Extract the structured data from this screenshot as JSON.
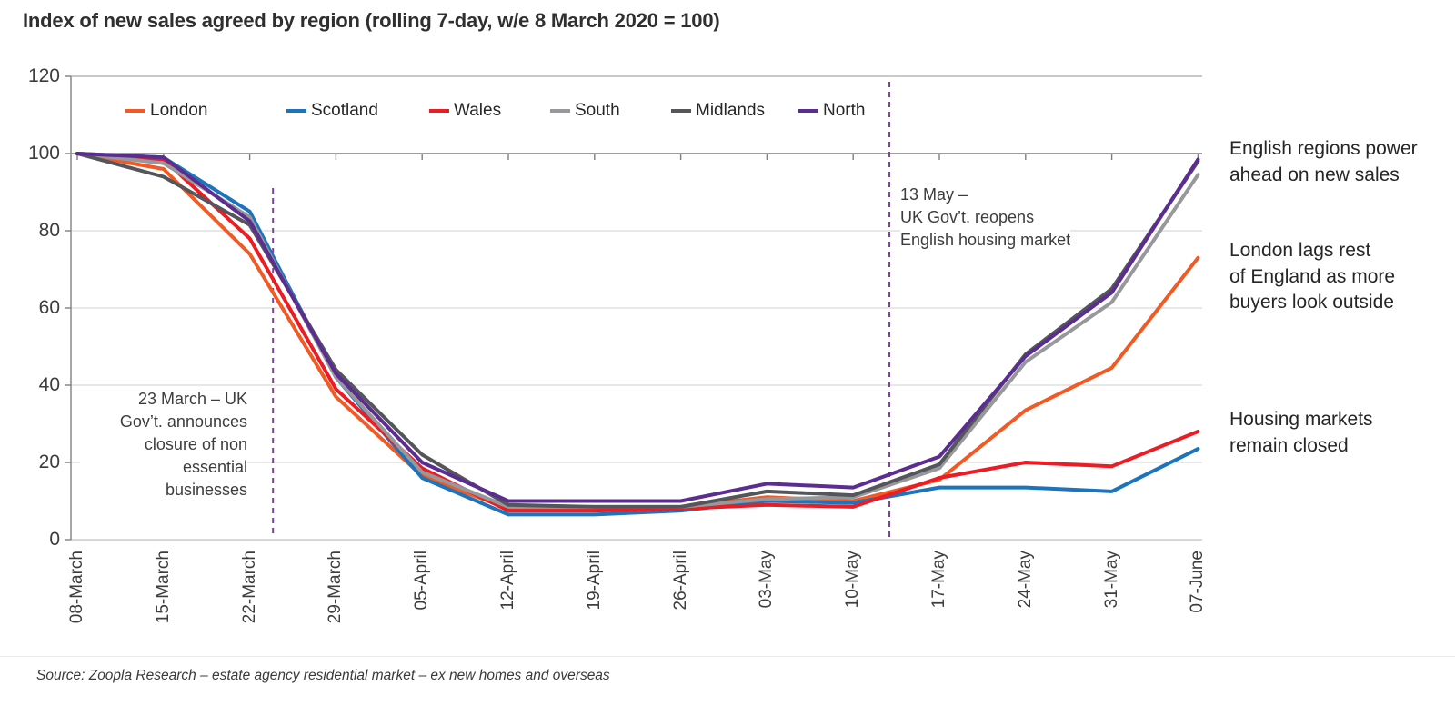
{
  "title": "Index of new sales agreed by region (rolling 7-day, w/e 8 March 2020 = 100)",
  "source": "Source: Zoopla Research – estate agency residential market – ex new homes and overseas",
  "annotations": {
    "lockdown": {
      "date": "23 March",
      "text": "23 March – UK\nGov’t. announces\nclosure of non\nessential\nbusinesses"
    },
    "reopen": {
      "date": "13 May",
      "text": "13 May –\nUK Gov’t. reopens\nEnglish housing market"
    }
  },
  "side_labels": [
    {
      "text": "English regions power\nahead on new sales"
    },
    {
      "text": "London lags rest\nof England as more\nbuyers look outside"
    },
    {
      "text": "Housing markets\nremain closed"
    }
  ],
  "chart_data": {
    "type": "line",
    "title": "Index of new sales agreed by region (rolling 7-day, w/e 8 March 2020 = 100)",
    "xlabel": "",
    "ylabel": "",
    "ylim": [
      0,
      120
    ],
    "grid": "horizontal",
    "legend_position": "top",
    "y_ticks": [
      0,
      20,
      40,
      60,
      80,
      100,
      120
    ],
    "x_labels": [
      "08-March",
      "15-March",
      "22-March",
      "29-March",
      "05-April",
      "12-April",
      "19-April",
      "26-April",
      "03-May",
      "10-May",
      "17-May",
      "24-May",
      "31-May",
      "07-June"
    ],
    "series": [
      {
        "name": "London",
        "color": "#F15A24",
        "values": [
          100,
          96,
          74,
          37,
          16.5,
          8,
          7.5,
          8.5,
          11,
          10,
          15.5,
          33.5,
          44.5,
          73
        ]
      },
      {
        "name": "Scotland",
        "color": "#1C75BC",
        "values": [
          100,
          99,
          85,
          42,
          16,
          6.5,
          6.5,
          7.5,
          10,
          9.5,
          13.5,
          13.5,
          12.5,
          23.5
        ]
      },
      {
        "name": "Wales",
        "color": "#EC1C24",
        "values": [
          100,
          98.5,
          78,
          39,
          18.5,
          7.5,
          7.5,
          8,
          9,
          8.5,
          16,
          20,
          19,
          28
        ]
      },
      {
        "name": "South",
        "color": "#96989B",
        "values": [
          100,
          97.5,
          83.5,
          42,
          17.5,
          8.5,
          8.5,
          8.5,
          10.5,
          11,
          18.5,
          46,
          61.5,
          94.5
        ]
      },
      {
        "name": "Midlands",
        "color": "#54565B",
        "values": [
          100,
          94,
          81.5,
          44,
          22,
          9,
          8.5,
          8.5,
          12.5,
          11.5,
          19.5,
          48,
          65,
          98
        ]
      },
      {
        "name": "North",
        "color": "#5C2D91",
        "values": [
          100,
          99,
          82.5,
          43,
          20,
          10,
          10,
          10,
          14.5,
          13.5,
          21.5,
          47.5,
          64,
          98.5
        ]
      }
    ],
    "markers": [
      {
        "label": "23 March",
        "x_index": 2.27
      },
      {
        "label": "13 May",
        "x_index": 9.42
      }
    ],
    "marker_color": "#7D4199"
  }
}
